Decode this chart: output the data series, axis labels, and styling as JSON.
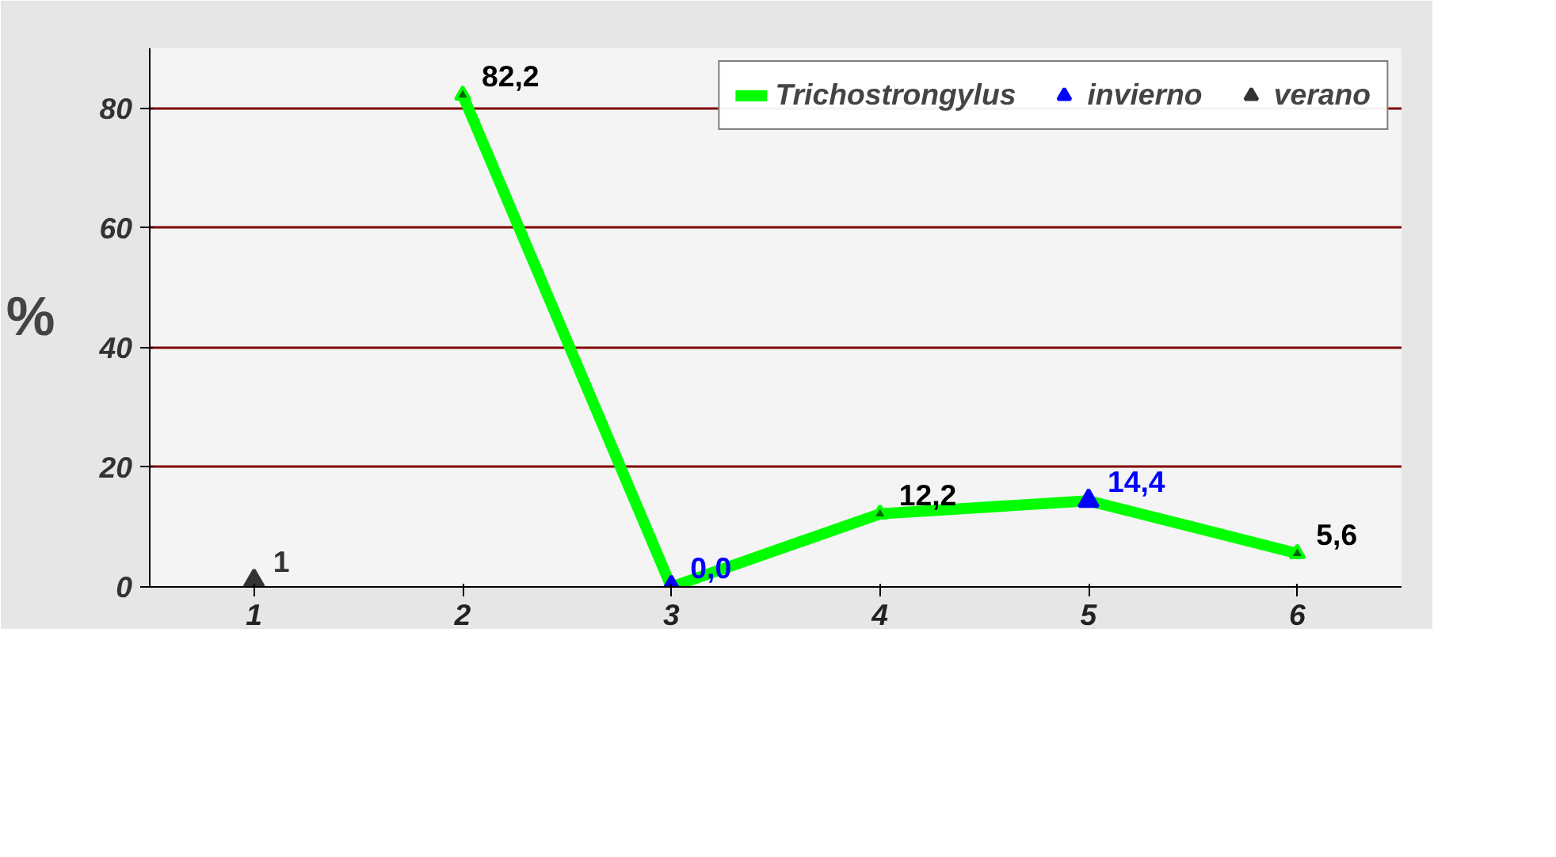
{
  "chart_data": {
    "type": "line",
    "ylabel": "%",
    "categories": [
      "1",
      "2",
      "3",
      "4",
      "5",
      "6"
    ],
    "ylim": [
      0,
      90
    ],
    "yticks": [
      0,
      20,
      40,
      60,
      80
    ],
    "grid": "y",
    "legend": "top right",
    "marker": "triangle",
    "line_style": "solid",
    "series": [
      {
        "name": "Trichostrongylus",
        "color": "#00ff00",
        "values": [
          null,
          82.2,
          0.0,
          12.2,
          14.4,
          5.6
        ],
        "value_labels": [
          null,
          "82,2",
          null,
          "12,2",
          null,
          "5,6"
        ]
      },
      {
        "name": "invierno",
        "type": "scatter",
        "color": "#0000ff",
        "values": [
          null,
          null,
          0.0,
          null,
          14.4,
          null
        ],
        "value_labels": [
          null,
          null,
          "0,0",
          null,
          "14,4",
          null
        ]
      },
      {
        "name": "verano",
        "type": "scatter",
        "color": "#333333",
        "values": [
          1,
          null,
          null,
          null,
          null,
          null
        ],
        "value_labels": [
          "1",
          null,
          null,
          null,
          null,
          null
        ]
      }
    ]
  }
}
